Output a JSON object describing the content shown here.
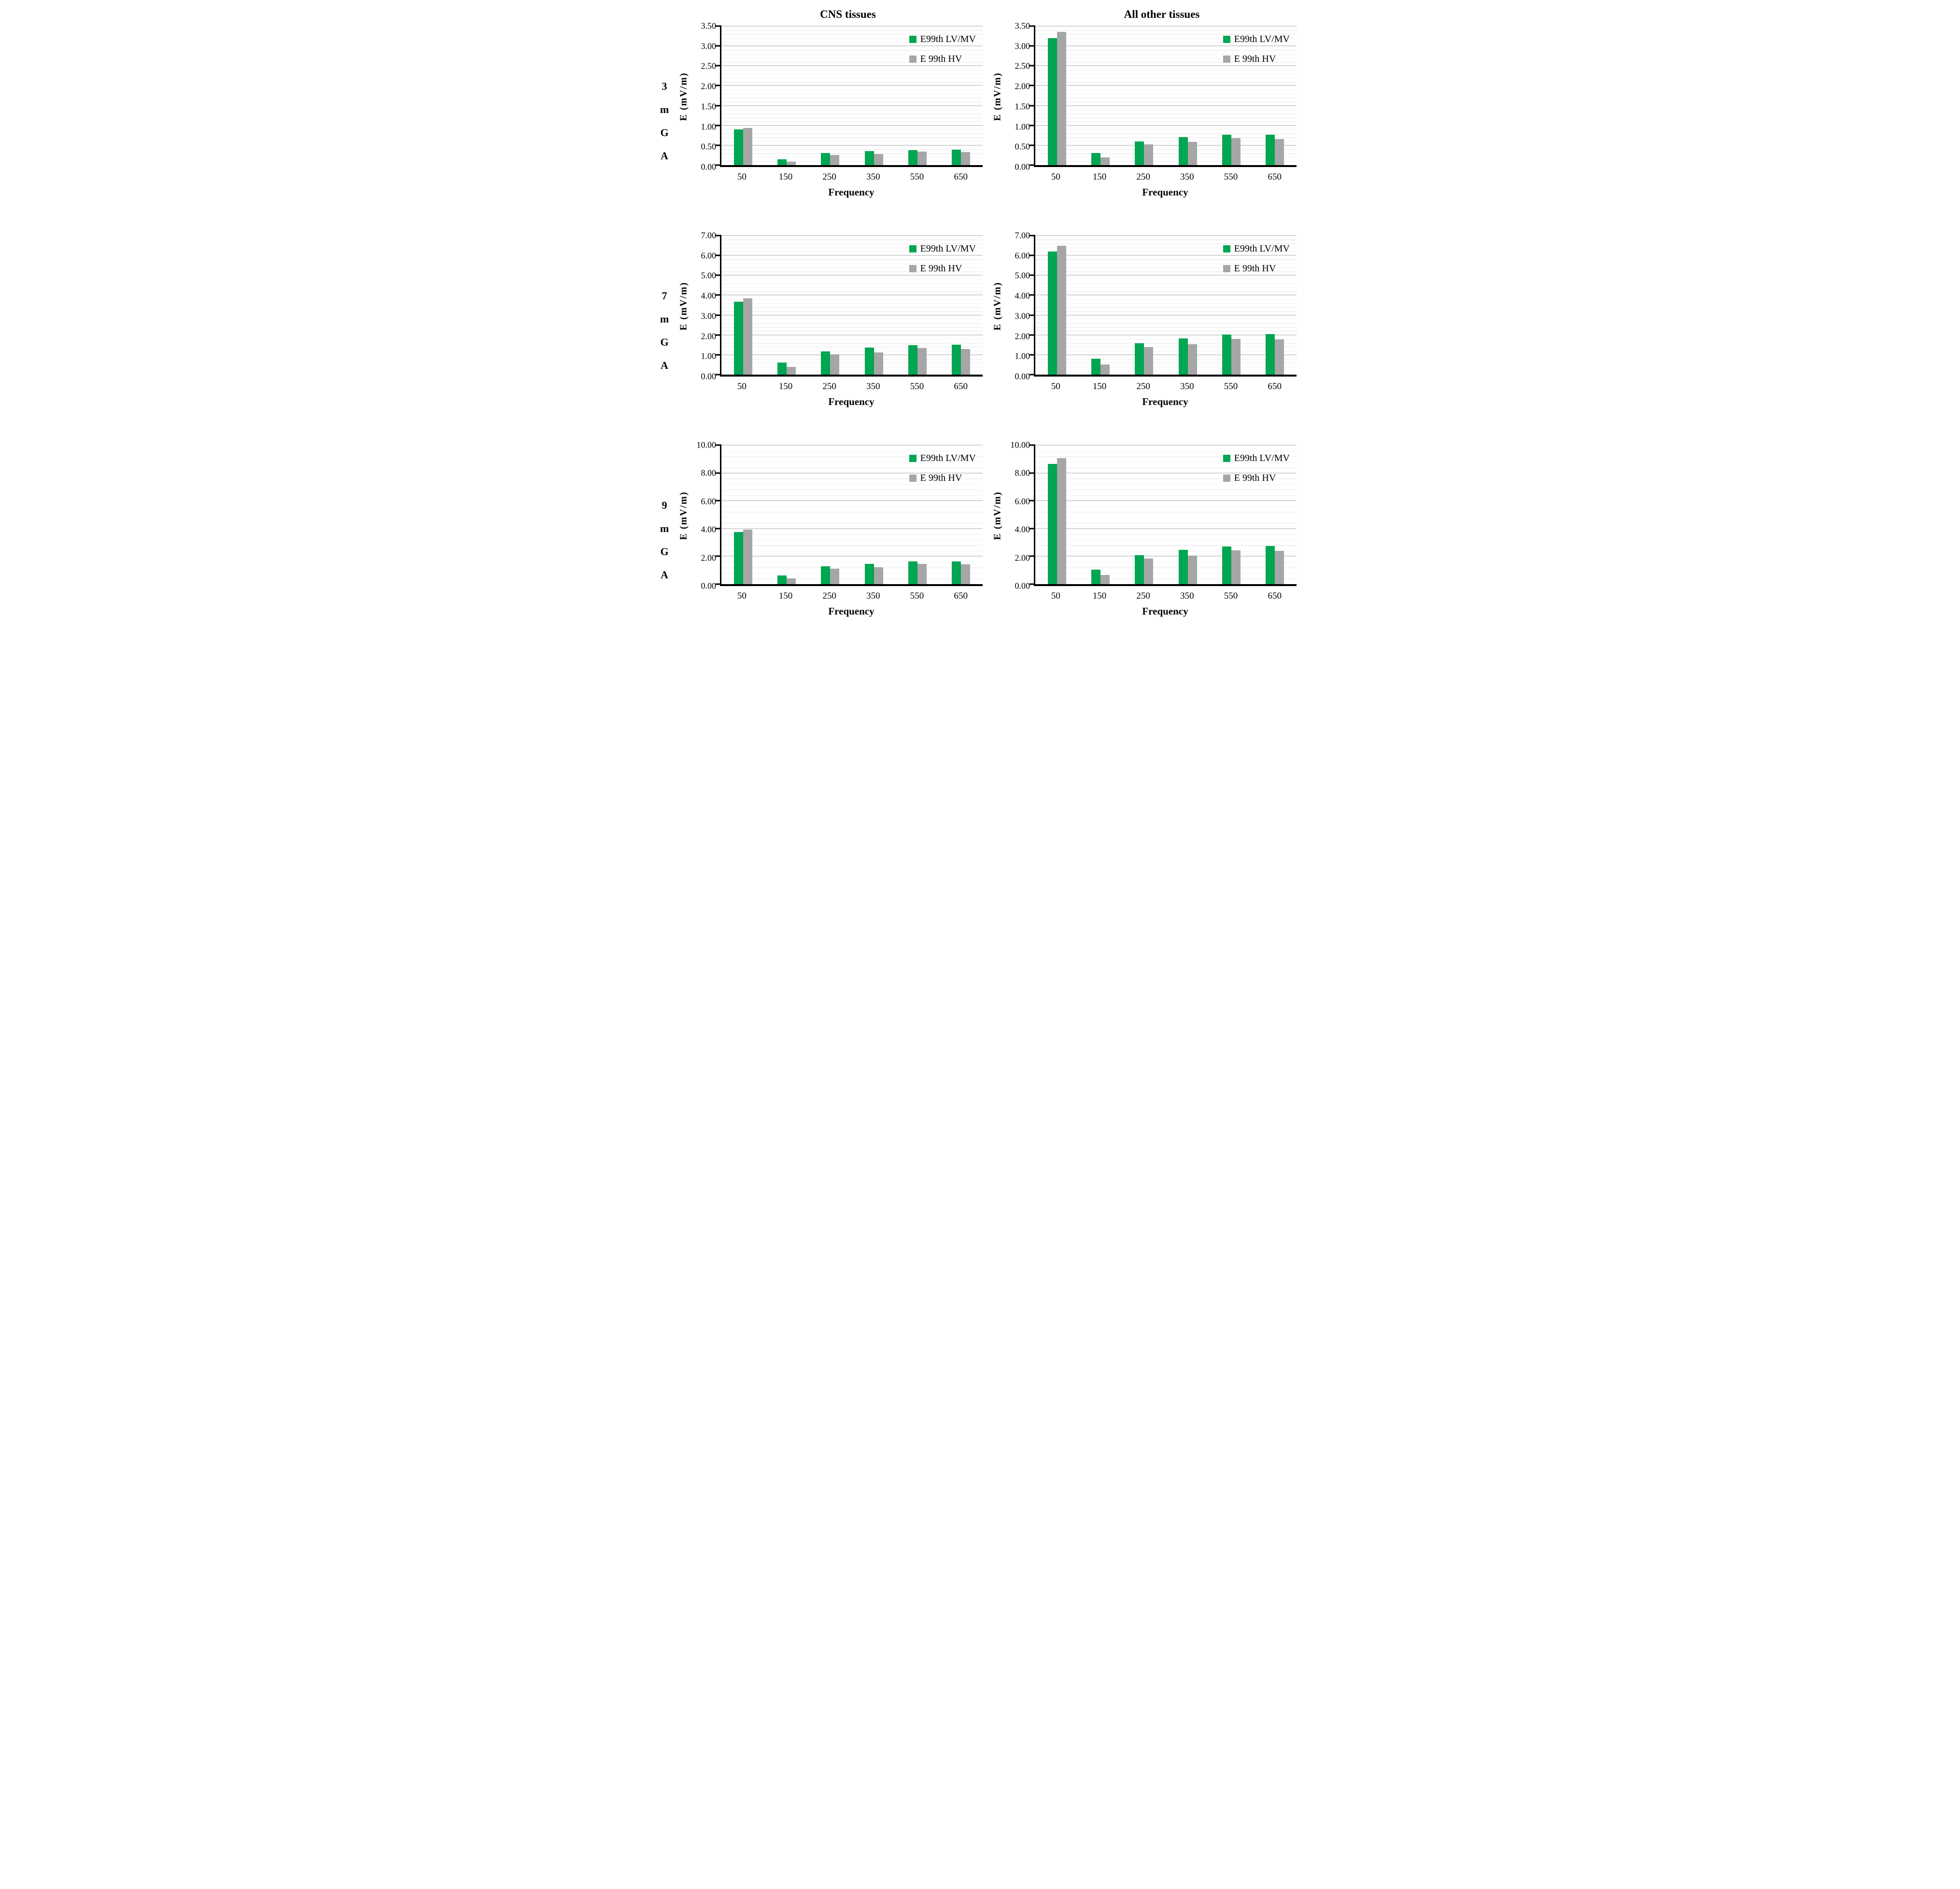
{
  "figure": {
    "column_titles": [
      "CNS tissues",
      "All other tissues"
    ],
    "row_labels": [
      "3 mGA",
      "7 mGA",
      "9 mGA"
    ]
  },
  "legend": {
    "items": [
      {
        "label": "E99th LV/MV",
        "color": "#00a651"
      },
      {
        "label": "E 99th HV",
        "color": "#a6a6a6"
      }
    ]
  },
  "colors": {
    "green": "#00a651",
    "gray": "#a6a6a6",
    "grid_major": "#d4d4d4",
    "grid_minor": "#f2f2f2",
    "axis": "#000000"
  },
  "chart_data": [
    {
      "type": "bar",
      "row_label": "3 mGA",
      "column_title": "CNS tissues",
      "xlabel": "Frequency",
      "ylabel": "E (mV/m)",
      "categories": [
        "50",
        "150",
        "250",
        "350",
        "550",
        "650"
      ],
      "ylim": [
        0,
        3.5
      ],
      "y_major_step": 0.5,
      "y_minor_per_major": 5,
      "y_tick_labels": [
        "0.00",
        "0.50",
        "1.00",
        "1.50",
        "2.00",
        "2.50",
        "3.00",
        "3.50"
      ],
      "series": [
        {
          "name": "E99th LV/MV",
          "color": "#00a651",
          "values": [
            0.9,
            0.15,
            0.3,
            0.35,
            0.38,
            0.39
          ]
        },
        {
          "name": "E 99th HV",
          "color": "#a6a6a6",
          "values": [
            0.94,
            0.09,
            0.26,
            0.28,
            0.34,
            0.33
          ]
        }
      ]
    },
    {
      "type": "bar",
      "row_label": "3 mGA",
      "column_title": "All other tissues",
      "xlabel": "Frequency",
      "ylabel": "E (mV/m)",
      "categories": [
        "50",
        "150",
        "250",
        "350",
        "550",
        "650"
      ],
      "ylim": [
        0,
        3.5
      ],
      "y_major_step": 0.5,
      "y_minor_per_major": 5,
      "y_tick_labels": [
        "0.00",
        "0.50",
        "1.00",
        "1.50",
        "2.00",
        "2.50",
        "3.00",
        "3.50"
      ],
      "series": [
        {
          "name": "E99th LV/MV",
          "color": "#00a651",
          "values": [
            3.2,
            0.31,
            0.6,
            0.7,
            0.76,
            0.77
          ]
        },
        {
          "name": "E 99th HV",
          "color": "#a6a6a6",
          "values": [
            3.35,
            0.19,
            0.52,
            0.58,
            0.68,
            0.66
          ]
        }
      ]
    },
    {
      "type": "bar",
      "row_label": "7 mGA",
      "column_title": "CNS tissues",
      "xlabel": "Frequency",
      "ylabel": "E (mV/m)",
      "categories": [
        "50",
        "150",
        "250",
        "350",
        "550",
        "650"
      ],
      "ylim": [
        0,
        7
      ],
      "y_major_step": 1,
      "y_minor_per_major": 5,
      "y_tick_labels": [
        "0.00",
        "1.00",
        "2.00",
        "3.00",
        "4.00",
        "5.00",
        "6.00",
        "7.00"
      ],
      "series": [
        {
          "name": "E99th LV/MV",
          "color": "#00a651",
          "values": [
            3.67,
            0.6,
            1.17,
            1.35,
            1.48,
            1.5
          ]
        },
        {
          "name": "E 99th HV",
          "color": "#a6a6a6",
          "values": [
            3.85,
            0.38,
            1.02,
            1.13,
            1.33,
            1.3
          ]
        }
      ]
    },
    {
      "type": "bar",
      "row_label": "7 mGA",
      "column_title": "All other tissues",
      "xlabel": "Frequency",
      "ylabel": "E (mV/m)",
      "categories": [
        "50",
        "150",
        "250",
        "350",
        "550",
        "650"
      ],
      "ylim": [
        0,
        7
      ],
      "y_major_step": 1,
      "y_minor_per_major": 5,
      "y_tick_labels": [
        "0.00",
        "1.00",
        "2.00",
        "3.00",
        "4.00",
        "5.00",
        "6.00",
        "7.00"
      ],
      "series": [
        {
          "name": "E99th LV/MV",
          "color": "#00a651",
          "values": [
            6.2,
            0.8,
            1.58,
            1.83,
            2.01,
            2.03
          ]
        },
        {
          "name": "E 99th HV",
          "color": "#a6a6a6",
          "values": [
            6.5,
            0.5,
            1.38,
            1.53,
            1.8,
            1.77
          ]
        }
      ]
    },
    {
      "type": "bar",
      "row_label": "9 mGA",
      "column_title": "CNS tissues",
      "xlabel": "Frequency",
      "ylabel": "E (mV/m)",
      "categories": [
        "50",
        "150",
        "250",
        "350",
        "550",
        "650"
      ],
      "ylim": [
        0,
        10
      ],
      "y_major_step": 2,
      "y_minor_per_major": 5,
      "y_tick_labels": [
        "0.00",
        "2.00",
        "4.00",
        "6.00",
        "8.00",
        "10.00"
      ],
      "series": [
        {
          "name": "E99th LV/MV",
          "color": "#00a651",
          "values": [
            3.75,
            0.63,
            1.27,
            1.45,
            1.62,
            1.63
          ]
        },
        {
          "name": "E 99th HV",
          "color": "#a6a6a6",
          "values": [
            3.92,
            0.4,
            1.1,
            1.22,
            1.45,
            1.42
          ]
        }
      ]
    },
    {
      "type": "bar",
      "row_label": "9 mGA",
      "column_title": "All other tissues",
      "xlabel": "Frequency",
      "ylabel": "E (mV/m)",
      "categories": [
        "50",
        "150",
        "250",
        "350",
        "550",
        "650"
      ],
      "ylim": [
        0,
        10
      ],
      "y_major_step": 2,
      "y_minor_per_major": 5,
      "y_tick_labels": [
        "0.00",
        "2.00",
        "4.00",
        "6.00",
        "8.00",
        "10.00"
      ],
      "series": [
        {
          "name": "E99th LV/MV",
          "color": "#00a651",
          "values": [
            8.65,
            1.05,
            2.1,
            2.45,
            2.7,
            2.75
          ]
        },
        {
          "name": "E 99th HV",
          "color": "#a6a6a6",
          "values": [
            9.05,
            0.65,
            1.85,
            2.05,
            2.43,
            2.38
          ]
        }
      ]
    }
  ]
}
